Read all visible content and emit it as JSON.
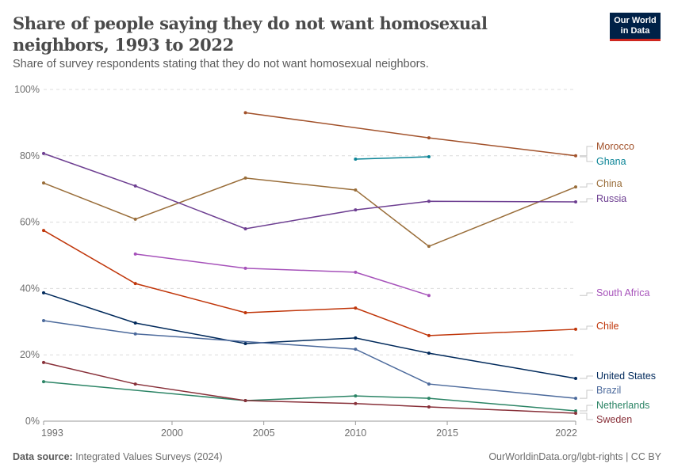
{
  "header": {
    "title": "Share of people saying they do not want homosexual neighbors, 1993 to 2022",
    "subtitle": "Share of survey respondents stating that they do not want homosexual neighbors.",
    "logo_text": "Our World in Data"
  },
  "footer": {
    "source_label": "Data source:",
    "source": "Integrated Values Surveys (2024)",
    "link": "OurWorldinData.org/lgbt-rights | CC BY"
  },
  "chart_data": {
    "type": "line",
    "title": "Share of people saying they do not want homosexual neighbors, 1993 to 2022",
    "xlim": [
      1993,
      2022
    ],
    "ylim": [
      0,
      100
    ],
    "x_ticks": [
      "1993",
      "2000",
      "2005",
      "2010",
      "2015",
      "2022"
    ],
    "y_ticks": [
      "0%",
      "20%",
      "40%",
      "60%",
      "80%",
      "100%"
    ],
    "grid": "horizontal dashed",
    "legend": "right (inline labels)",
    "series": [
      {
        "name": "Morocco",
        "color": "#a2522b",
        "x": [
          2004,
          2014,
          2022
        ],
        "y": [
          93.0,
          85.4,
          80.0
        ]
      },
      {
        "name": "Ghana",
        "color": "#0a8496",
        "x": [
          2010,
          2014
        ],
        "y": [
          79.0,
          79.7
        ]
      },
      {
        "name": "China",
        "color": "#996d39",
        "x": [
          1993,
          1998,
          2004,
          2010,
          2014,
          2022
        ],
        "y": [
          71.8,
          60.9,
          73.3,
          69.7,
          52.7,
          70.6
        ]
      },
      {
        "name": "Russia",
        "color": "#6d3e91",
        "x": [
          1993,
          1998,
          2004,
          2010,
          2014,
          2022
        ],
        "y": [
          80.7,
          70.9,
          58.0,
          63.7,
          66.3,
          66.1
        ]
      },
      {
        "name": "South Africa",
        "color": "#a652ba",
        "x": [
          1998,
          2004,
          2010,
          2014
        ],
        "y": [
          50.4,
          46.1,
          44.9,
          37.9
        ]
      },
      {
        "name": "Chile",
        "color": "#c0360a",
        "x": [
          1993,
          1998,
          2004,
          2010,
          2014,
          2022
        ],
        "y": [
          57.5,
          41.5,
          32.7,
          34.1,
          25.8,
          27.7
        ]
      },
      {
        "name": "United States",
        "color": "#00295b",
        "x": [
          1993,
          1998,
          2004,
          2010,
          2014,
          2022
        ],
        "y": [
          38.7,
          29.6,
          23.4,
          25.1,
          20.5,
          12.9
        ]
      },
      {
        "name": "Brazil",
        "color": "#4c6a9c",
        "x": [
          1993,
          1998,
          2010,
          2014,
          2022
        ],
        "y": [
          30.3,
          26.3,
          21.7,
          11.2,
          6.9
        ]
      },
      {
        "name": "Netherlands",
        "color": "#2b8465",
        "x": [
          1993,
          2004,
          2010,
          2014,
          2022
        ],
        "y": [
          11.9,
          6.2,
          7.6,
          6.9,
          3.1
        ]
      },
      {
        "name": "Sweden",
        "color": "#883039",
        "x": [
          1993,
          1998,
          2004,
          2010,
          2014,
          2022
        ],
        "y": [
          17.7,
          11.2,
          6.2,
          5.3,
          4.3,
          2.4
        ]
      }
    ]
  }
}
